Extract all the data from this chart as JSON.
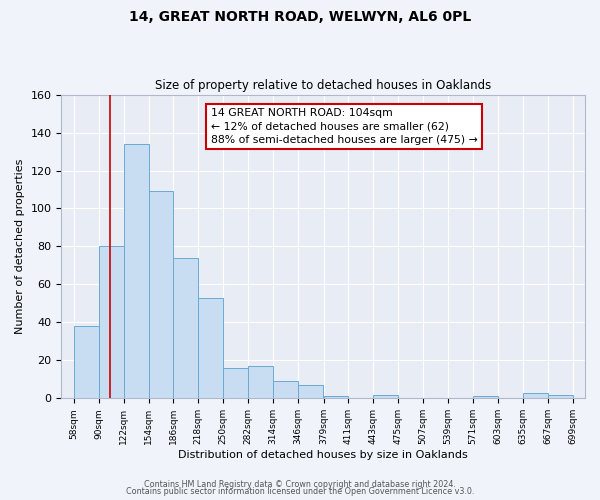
{
  "title1": "14, GREAT NORTH ROAD, WELWYN, AL6 0PL",
  "title2": "Size of property relative to detached houses in Oaklands",
  "xlabel": "Distribution of detached houses by size in Oaklands",
  "ylabel": "Number of detached properties",
  "bar_left_edges": [
    58,
    90,
    122,
    154,
    186,
    218,
    250,
    282,
    314,
    346,
    379,
    411,
    443,
    475,
    507,
    539,
    571,
    603,
    635,
    667
  ],
  "bar_heights": [
    38,
    80,
    134,
    109,
    74,
    53,
    16,
    17,
    9,
    7,
    1,
    0,
    2,
    0,
    0,
    0,
    1,
    0,
    3,
    2
  ],
  "bin_width": 32,
  "bar_facecolor": "#c9ddf2",
  "bar_edgecolor": "#6aaad4",
  "vline_x": 104,
  "vline_color": "#cc0000",
  "annotation_lines": [
    "14 GREAT NORTH ROAD: 104sqm",
    "← 12% of detached houses are smaller (62)",
    "88% of semi-detached houses are larger (475) →"
  ],
  "annotation_box_edgecolor": "#cc0000",
  "annotation_box_facecolor": "#ffffff",
  "tick_labels": [
    "58sqm",
    "90sqm",
    "122sqm",
    "154sqm",
    "186sqm",
    "218sqm",
    "250sqm",
    "282sqm",
    "314sqm",
    "346sqm",
    "379sqm",
    "411sqm",
    "443sqm",
    "475sqm",
    "507sqm",
    "539sqm",
    "571sqm",
    "603sqm",
    "635sqm",
    "667sqm",
    "699sqm"
  ],
  "ylim": [
    0,
    160
  ],
  "yticks": [
    0,
    20,
    40,
    60,
    80,
    100,
    120,
    140,
    160
  ],
  "plot_bg_color": "#e8edf5",
  "fig_bg_color": "#f0f4fa",
  "grid_color": "#ffffff",
  "footer1": "Contains HM Land Registry data © Crown copyright and database right 2024.",
  "footer2": "Contains public sector information licensed under the Open Government Licence v3.0."
}
